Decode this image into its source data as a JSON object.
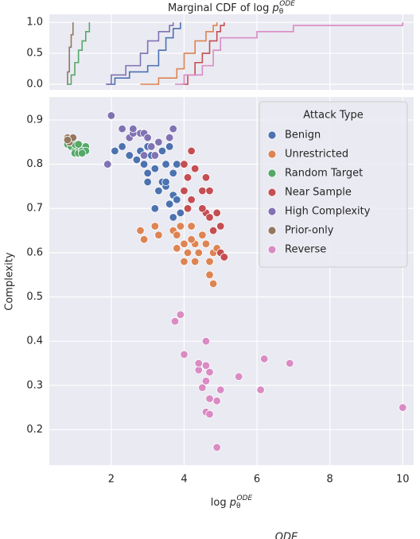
{
  "chart_data": [
    {
      "type": "line",
      "step": true,
      "title": "Marginal CDF of log ",
      "title_var": "p",
      "title_sub": "θ",
      "title_sup": "ODE",
      "ylim": [
        -0.09,
        1.13
      ],
      "yticks": [
        {
          "value": 0,
          "label": "0.0"
        },
        {
          "value": 0.5,
          "label": "0.5"
        },
        {
          "value": 1,
          "label": "1.0"
        }
      ],
      "grid": true,
      "series": [
        {
          "color": "#937860",
          "x": [
            0.78,
            0.8,
            0.85,
            0.9,
            0.95
          ],
          "values": [
            0,
            0.2,
            0.6,
            0.8,
            1.0
          ]
        },
        {
          "color": "#55a868",
          "x": [
            0.8,
            0.9,
            1.0,
            1.1,
            1.2,
            1.3,
            1.4
          ],
          "values": [
            0,
            0.15,
            0.35,
            0.55,
            0.7,
            0.85,
            1.0
          ]
        },
        {
          "color": "#4c72b0",
          "x": [
            1.9,
            2.1,
            2.5,
            3.0,
            3.3,
            3.5,
            3.7,
            3.9
          ],
          "values": [
            0,
            0.1,
            0.2,
            0.3,
            0.55,
            0.75,
            0.9,
            1.0
          ]
        },
        {
          "color": "#8172b3",
          "x": [
            1.85,
            2.0,
            2.4,
            2.8,
            3.0,
            3.3,
            3.6,
            3.7
          ],
          "values": [
            0,
            0.15,
            0.3,
            0.5,
            0.7,
            0.85,
            0.95,
            1.0
          ]
        },
        {
          "color": "#dd8452",
          "x": [
            2.8,
            3.3,
            3.8,
            4.0,
            4.3,
            4.6,
            4.8,
            4.9
          ],
          "values": [
            0,
            0.1,
            0.25,
            0.5,
            0.7,
            0.85,
            0.95,
            1.0
          ]
        },
        {
          "color": "#c44e52",
          "x": [
            3.95,
            4.1,
            4.3,
            4.5,
            4.7,
            4.9,
            5.0,
            5.1
          ],
          "values": [
            0,
            0.15,
            0.35,
            0.5,
            0.7,
            0.85,
            0.95,
            1.0
          ]
        },
        {
          "color": "#da8bc3",
          "x": [
            3.75,
            4.0,
            4.5,
            4.8,
            5.0,
            6.0,
            7.0,
            10.0
          ],
          "values": [
            0,
            0.15,
            0.3,
            0.55,
            0.75,
            0.85,
            0.95,
            1.0
          ]
        }
      ]
    },
    {
      "type": "scatter",
      "xlabel": "log ",
      "xlabel_var": "p",
      "xlabel_sub": "θ",
      "xlabel_sup": "ODE",
      "ylabel": "Complexity",
      "xlim": [
        0.3,
        10.3
      ],
      "xticks": [
        2,
        4,
        6,
        8,
        10
      ],
      "ylim": [
        0.12,
        0.952
      ],
      "yticks": [
        0.2,
        0.3,
        0.4,
        0.5,
        0.6,
        0.7,
        0.8,
        0.9
      ],
      "grid": true,
      "legend": "upper right",
      "legend_title": "Attack Type",
      "series": [
        {
          "name": "Benign",
          "color": "#4c72b0",
          "x": [
            2.1,
            2.3,
            2.5,
            2.7,
            2.8,
            3.0,
            3.1,
            3.3,
            3.4,
            3.5,
            3.6,
            2.9,
            3.0,
            3.2,
            3.4,
            3.5,
            3.7,
            3.8,
            3.0,
            3.3,
            3.7,
            3.6,
            3.2,
            3.7,
            3.9,
            3.8,
            3.5
          ],
          "values": [
            0.83,
            0.84,
            0.82,
            0.81,
            0.83,
            0.84,
            0.82,
            0.85,
            0.83,
            0.8,
            0.84,
            0.8,
            0.78,
            0.79,
            0.76,
            0.75,
            0.78,
            0.8,
            0.76,
            0.74,
            0.73,
            0.71,
            0.7,
            0.68,
            0.69,
            0.72,
            0.76
          ]
        },
        {
          "name": "Unrestricted",
          "color": "#dd8452",
          "x": [
            2.8,
            2.9,
            3.2,
            3.3,
            3.7,
            3.9,
            3.8,
            4.0,
            4.2,
            4.3,
            4.5,
            4.6,
            4.1,
            4.4,
            4.7,
            4.8,
            4.9,
            4.7,
            4.8,
            4.0,
            4.3,
            3.8,
            4.2
          ],
          "values": [
            0.65,
            0.63,
            0.66,
            0.64,
            0.65,
            0.66,
            0.64,
            0.62,
            0.66,
            0.62,
            0.64,
            0.62,
            0.6,
            0.6,
            0.58,
            0.6,
            0.61,
            0.55,
            0.53,
            0.58,
            0.58,
            0.61,
            0.63
          ]
        },
        {
          "name": "Random Target",
          "color": "#55a868",
          "x": [
            0.8,
            0.9,
            1.0,
            1.1,
            1.2,
            1.3,
            1.0,
            1.1,
            1.2,
            0.9,
            1.0,
            1.3,
            1.2,
            1.1
          ],
          "values": [
            0.845,
            0.84,
            0.83,
            0.835,
            0.84,
            0.84,
            0.825,
            0.825,
            0.83,
            0.85,
            0.845,
            0.83,
            0.825,
            0.845
          ]
        },
        {
          "name": "Near Sample",
          "color": "#c44e52",
          "x": [
            4.2,
            4.0,
            4.3,
            4.1,
            4.6,
            4.5,
            4.7,
            4.0,
            4.2,
            4.6,
            4.7,
            4.9,
            5.0,
            4.8,
            5.0,
            5.1,
            4.5,
            4.1
          ],
          "values": [
            0.83,
            0.8,
            0.79,
            0.77,
            0.77,
            0.74,
            0.74,
            0.74,
            0.72,
            0.69,
            0.68,
            0.69,
            0.66,
            0.65,
            0.6,
            0.59,
            0.7,
            0.7
          ]
        },
        {
          "name": "High Complexity",
          "color": "#8172b3",
          "x": [
            2.0,
            1.9,
            2.3,
            2.5,
            2.6,
            2.8,
            2.9,
            3.0,
            3.1,
            3.3,
            3.6,
            3.7,
            2.6,
            3.2,
            2.9
          ],
          "values": [
            0.91,
            0.8,
            0.88,
            0.86,
            0.87,
            0.87,
            0.87,
            0.86,
            0.84,
            0.85,
            0.86,
            0.88,
            0.88,
            0.82,
            0.82
          ]
        },
        {
          "name": "Prior-only",
          "color": "#937860",
          "x": [
            0.8,
            0.9,
            0.85,
            0.95,
            0.8
          ],
          "values": [
            0.86,
            0.855,
            0.85,
            0.86,
            0.855
          ]
        },
        {
          "name": "Reverse",
          "color": "#da8bc3",
          "x": [
            3.9,
            3.75,
            4.0,
            4.6,
            4.4,
            4.6,
            4.7,
            4.6,
            4.5,
            4.7,
            5.0,
            4.9,
            5.5,
            6.2,
            6.9,
            4.6,
            4.7,
            4.9,
            6.1,
            10.0,
            4.4
          ],
          "values": [
            0.46,
            0.445,
            0.37,
            0.4,
            0.335,
            0.345,
            0.33,
            0.31,
            0.295,
            0.27,
            0.29,
            0.265,
            0.32,
            0.36,
            0.35,
            0.24,
            0.235,
            0.16,
            0.29,
            0.25,
            0.35
          ]
        }
      ]
    }
  ],
  "caption_fragment": "ODE"
}
